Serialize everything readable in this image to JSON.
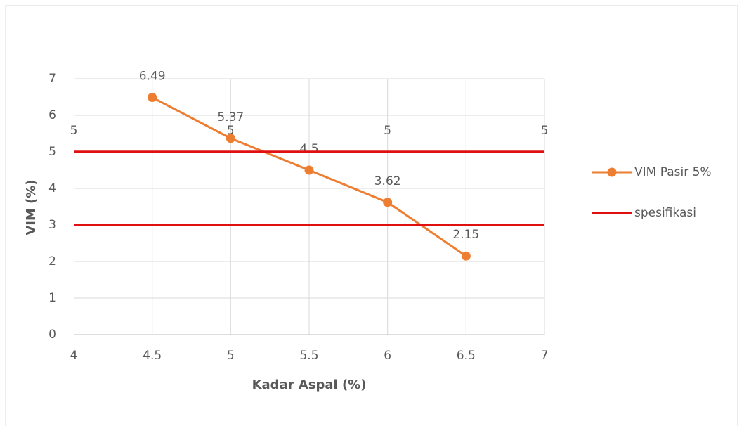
{
  "chart_data": {
    "type": "line",
    "x_label": "Kadar Aspal (%)",
    "y_label": "VIM (%)",
    "xlim": [
      4,
      7
    ],
    "xticks": [
      4,
      4.5,
      5,
      5.5,
      6,
      6.5,
      7
    ],
    "ylim": [
      0,
      7
    ],
    "yticks": [
      0,
      1,
      2,
      3,
      4,
      5,
      6,
      7
    ],
    "grid": true,
    "legend": "right",
    "series": [
      {
        "name": "VIM Pasir 5%",
        "color": "#ed7d31",
        "markers": true,
        "show_labels": true,
        "x": [
          4.5,
          5,
          5.5,
          6,
          6.5
        ],
        "values": [
          6.49,
          5.37,
          4.5,
          3.62,
          2.15
        ]
      },
      {
        "name": "spesifikasi",
        "color": "#e01010",
        "markers": false,
        "show_labels": true,
        "x": [
          4,
          5,
          6,
          7
        ],
        "values": [
          5,
          5,
          5,
          5
        ]
      },
      {
        "color": "#e01010",
        "markers": false,
        "show_labels": false,
        "x": [
          4,
          5,
          6,
          7
        ],
        "values": [
          3,
          3,
          3,
          3
        ]
      }
    ]
  }
}
